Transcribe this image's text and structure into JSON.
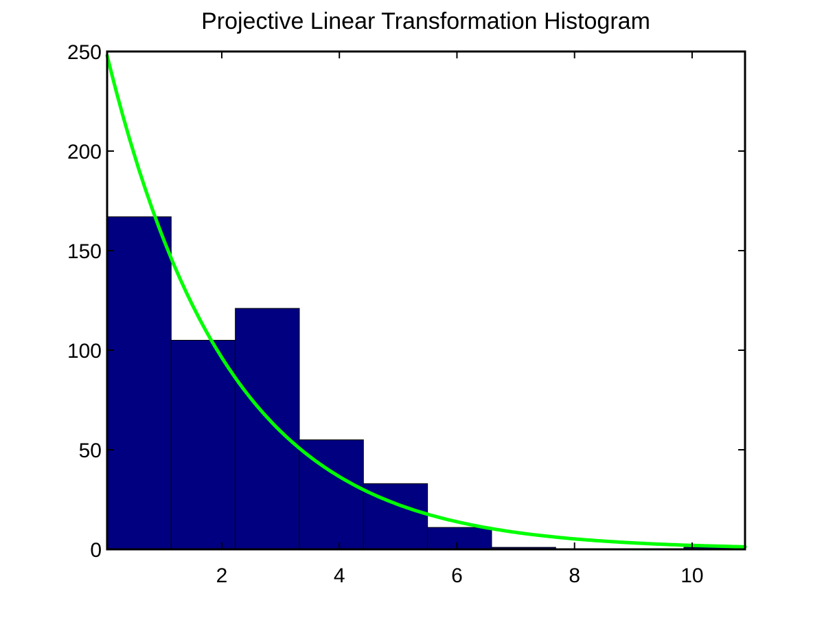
{
  "chart_data": {
    "type": "bar",
    "title": "Projective Linear Transformation Histogram",
    "xlabel": "",
    "ylabel": "",
    "xlim": [
      0.05,
      10.9
    ],
    "ylim": [
      0,
      250
    ],
    "xticks": [
      2,
      4,
      6,
      8,
      10
    ],
    "yticks": [
      0,
      50,
      100,
      150,
      200,
      250
    ],
    "bins": [
      {
        "x0": 0.05,
        "x1": 1.14,
        "value": 167
      },
      {
        "x0": 1.14,
        "x1": 2.23,
        "value": 105
      },
      {
        "x0": 2.23,
        "x1": 3.32,
        "value": 121
      },
      {
        "x0": 3.32,
        "x1": 4.41,
        "value": 55
      },
      {
        "x0": 4.41,
        "x1": 5.5,
        "value": 33
      },
      {
        "x0": 5.5,
        "x1": 6.59,
        "value": 11
      },
      {
        "x0": 6.59,
        "x1": 7.68,
        "value": 1
      },
      {
        "x0": 7.68,
        "x1": 8.77,
        "value": 0
      },
      {
        "x0": 8.77,
        "x1": 9.86,
        "value": 0
      },
      {
        "x0": 9.86,
        "x1": 10.9,
        "value": 1
      }
    ],
    "fit": {
      "type": "exponential",
      "amplitude": 248,
      "rate": 0.485,
      "x_start": 0.05,
      "x_end": 10.9
    },
    "colors": {
      "bar": "#000080",
      "curve": "#00ff00"
    }
  }
}
